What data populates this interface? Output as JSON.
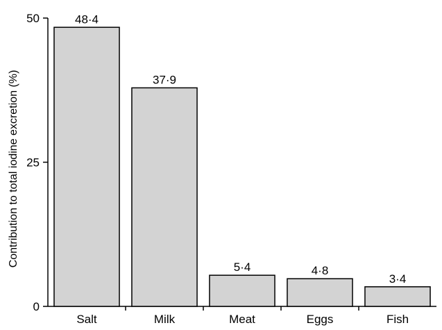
{
  "chart_data": {
    "type": "bar",
    "title": "",
    "xlabel": "",
    "ylabel": "Contribution to total iodine excretion (%)",
    "categories": [
      "Salt",
      "Milk",
      "Meat",
      "Eggs",
      "Fish"
    ],
    "values": [
      48.4,
      37.9,
      5.4,
      4.8,
      3.4
    ],
    "data_labels": [
      "48·4",
      "37·9",
      "5·4",
      "4·8",
      "3·4"
    ],
    "ylim": [
      0,
      50
    ],
    "yticks": [
      0,
      25,
      50
    ],
    "grid": false,
    "colors": {
      "bar_fill": "#d3d3d3",
      "bar_stroke": "#000000",
      "axis": "#000000"
    }
  }
}
